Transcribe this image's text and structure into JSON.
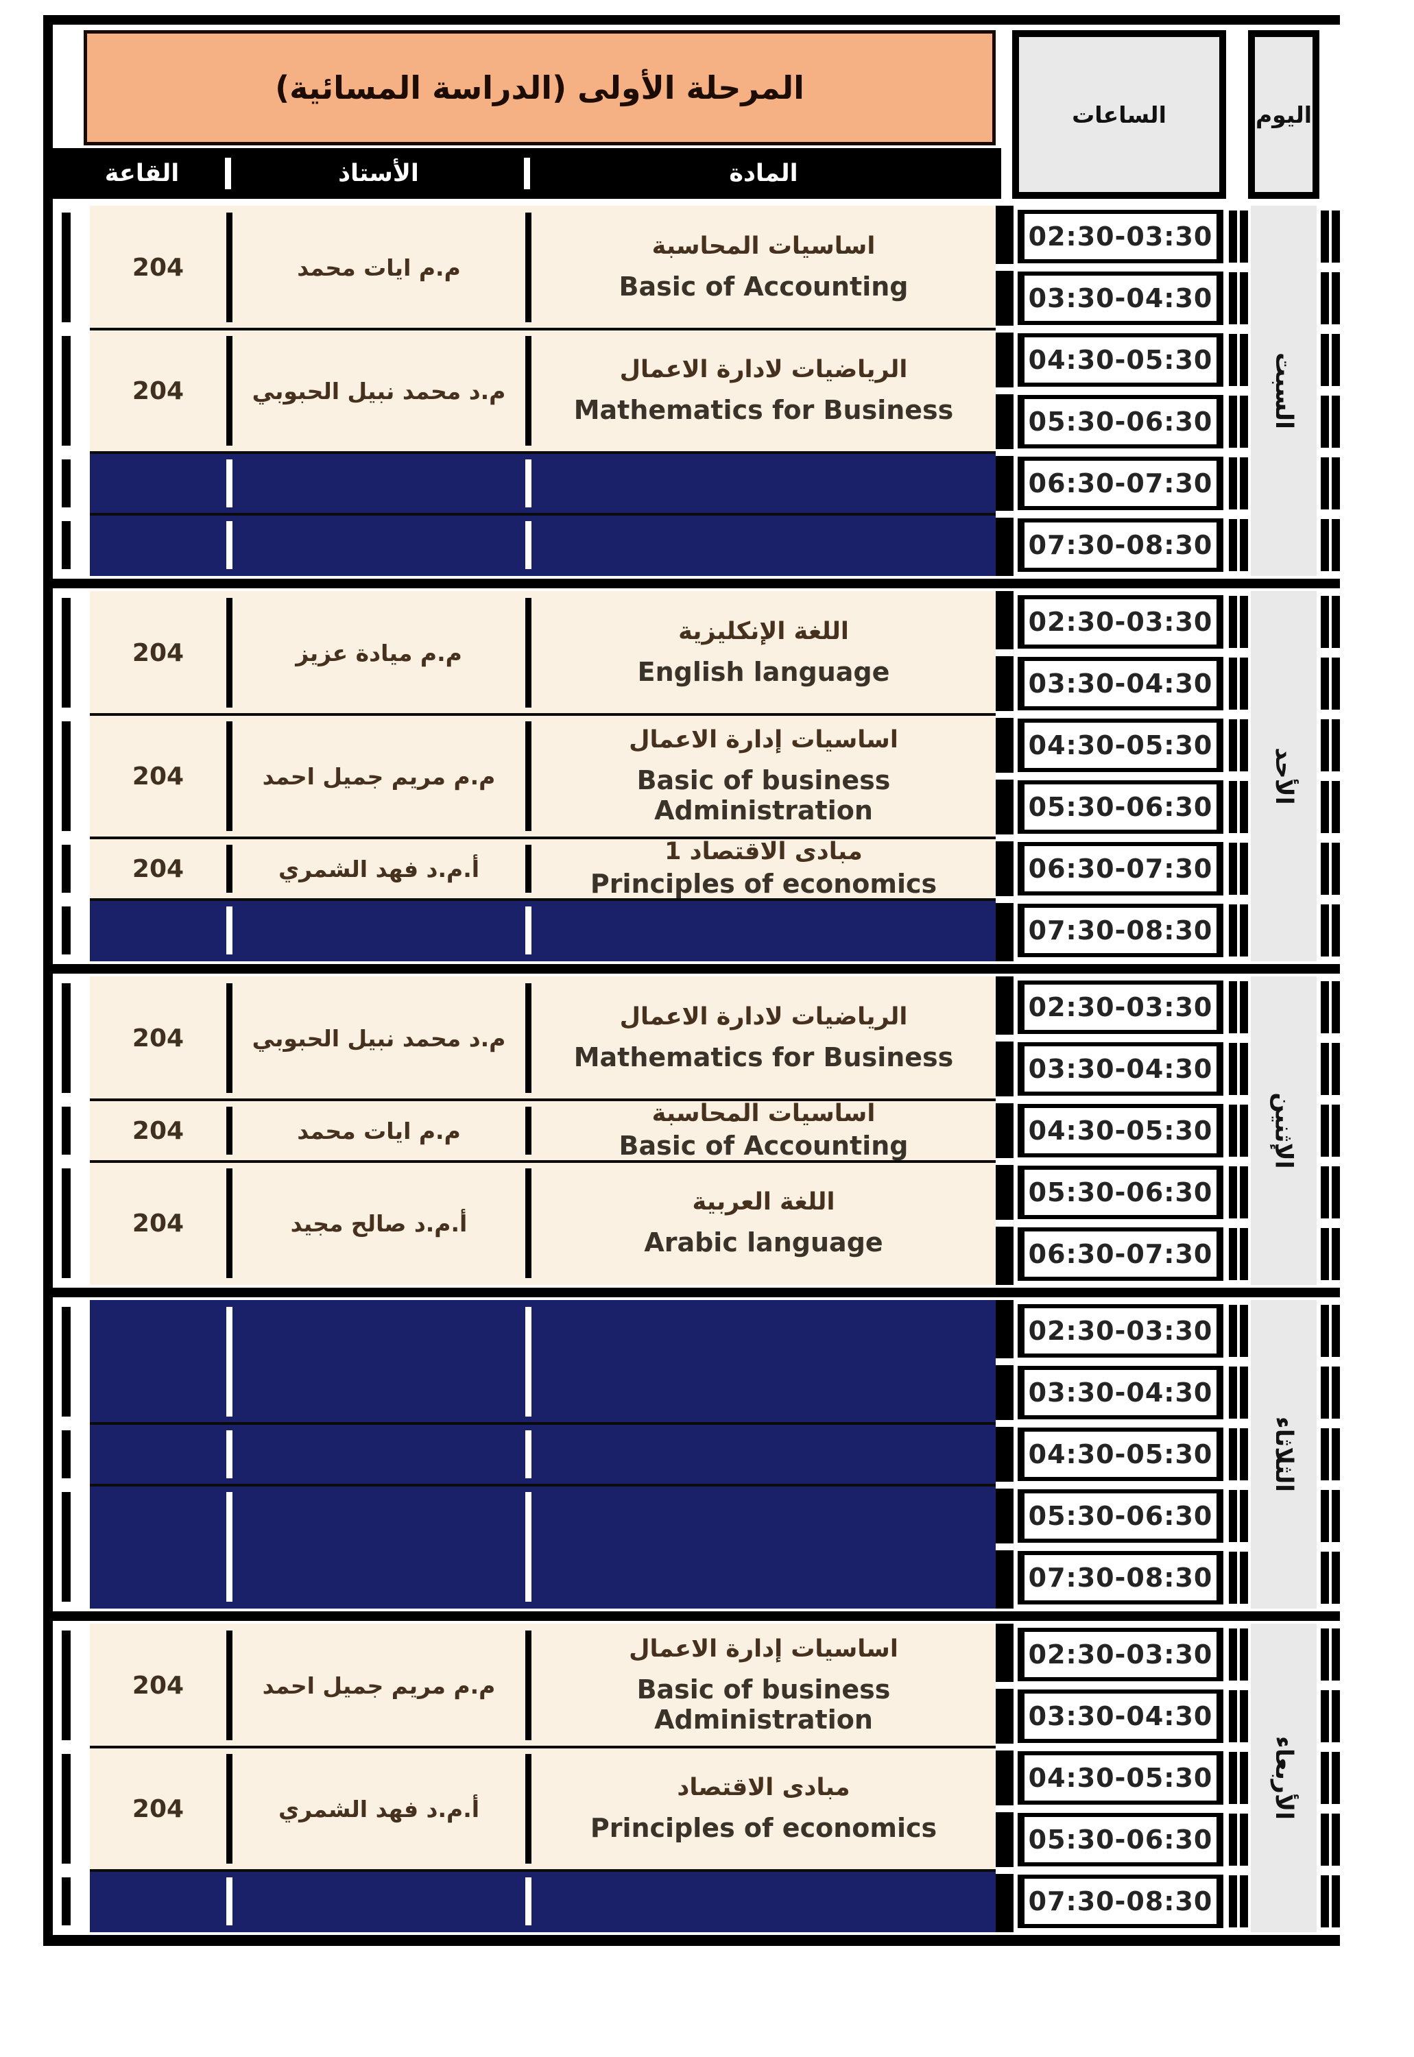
{
  "title": "المرحلة الأولى (الدراسة المسائية)",
  "column_headers": {
    "hours": "الساعات",
    "day": "اليوم",
    "room": "القاعة",
    "teacher": "الأستاذ",
    "subject": "المادة"
  },
  "colors": {
    "header_orange": "#F5B183",
    "cell_cream": "#FBF1E2",
    "empty_navy": "#1B2168",
    "day_gray": "#E9E9E9",
    "border_black": "#000000"
  },
  "days": [
    {
      "name": "السبت",
      "slots": [
        "02:30-03:30",
        "03:30-04:30",
        "04:30-05:30",
        "05:30-06:30",
        "06:30-07:30",
        "07:30-08:30"
      ],
      "rows": [
        {
          "span": 2,
          "empty": false,
          "room": "204",
          "teacher": "م.م ايات محمد",
          "subject_ar": "اساسيات المحاسبة",
          "subject_en": "Basic of Accounting"
        },
        {
          "span": 2,
          "empty": false,
          "room": "204",
          "teacher": "م.د محمد نبيل الحبوبي",
          "subject_ar": "الرياضيات لادارة الاعمال",
          "subject_en": "Mathematics for Business"
        },
        {
          "span": 1,
          "empty": true
        },
        {
          "span": 1,
          "empty": true
        }
      ]
    },
    {
      "name": "الأحد",
      "slots": [
        "02:30-03:30",
        "03:30-04:30",
        "04:30-05:30",
        "05:30-06:30",
        "06:30-07:30",
        "07:30-08:30"
      ],
      "rows": [
        {
          "span": 2,
          "empty": false,
          "room": "204",
          "teacher": "م.م ميادة عزيز",
          "subject_ar": "اللغة الإنكليزية",
          "subject_en": "English language"
        },
        {
          "span": 2,
          "empty": false,
          "room": "204",
          "teacher": "م.م مريم جميل احمد",
          "subject_ar": "اساسيات إدارة الاعمال",
          "subject_en": "Basic of business Administration"
        },
        {
          "span": 1,
          "empty": false,
          "room": "204",
          "teacher": "أ.م.د فهد الشمري",
          "subject_ar": "مبادى الاقتصاد 1",
          "subject_en": "Principles of economics"
        },
        {
          "span": 1,
          "empty": true
        }
      ]
    },
    {
      "name": "الإثنين",
      "slots": [
        "02:30-03:30",
        "03:30-04:30",
        "04:30-05:30",
        "05:30-06:30",
        "06:30-07:30"
      ],
      "rows": [
        {
          "span": 2,
          "empty": false,
          "room": "204",
          "teacher": "م.د محمد نبيل الحبوبي",
          "subject_ar": "الرياضيات لادارة الاعمال",
          "subject_en": "Mathematics for Business"
        },
        {
          "span": 1,
          "empty": false,
          "room": "204",
          "teacher": "م.م ايات محمد",
          "subject_ar": "اساسيات المحاسبة",
          "subject_en": "Basic of Accounting"
        },
        {
          "span": 2,
          "empty": false,
          "room": "204",
          "teacher": "أ.م.د صالح مجيد",
          "subject_ar": "اللغة العربية",
          "subject_en": "Arabic language"
        }
      ]
    },
    {
      "name": "الثلاثاء",
      "slots": [
        "02:30-03:30",
        "03:30-04:30",
        "04:30-05:30",
        "05:30-06:30",
        "07:30-08:30"
      ],
      "rows": [
        {
          "span": 2,
          "empty": true
        },
        {
          "span": 1,
          "empty": true
        },
        {
          "span": 2,
          "empty": true
        }
      ]
    },
    {
      "name": "الأربعاء",
      "slots": [
        "02:30-03:30",
        "03:30-04:30",
        "04:30-05:30",
        "05:30-06:30",
        "07:30-08:30"
      ],
      "rows": [
        {
          "span": 2,
          "empty": false,
          "room": "204",
          "teacher": "م.م مريم جميل احمد",
          "subject_ar": "اساسيات إدارة الاعمال",
          "subject_en": "Basic of business Administration"
        },
        {
          "span": 2,
          "empty": false,
          "room": "204",
          "teacher": "أ.م.د فهد الشمري",
          "subject_ar": "مبادى الاقتصاد",
          "subject_en": "Principles of economics"
        },
        {
          "span": 1,
          "empty": true
        }
      ]
    }
  ]
}
